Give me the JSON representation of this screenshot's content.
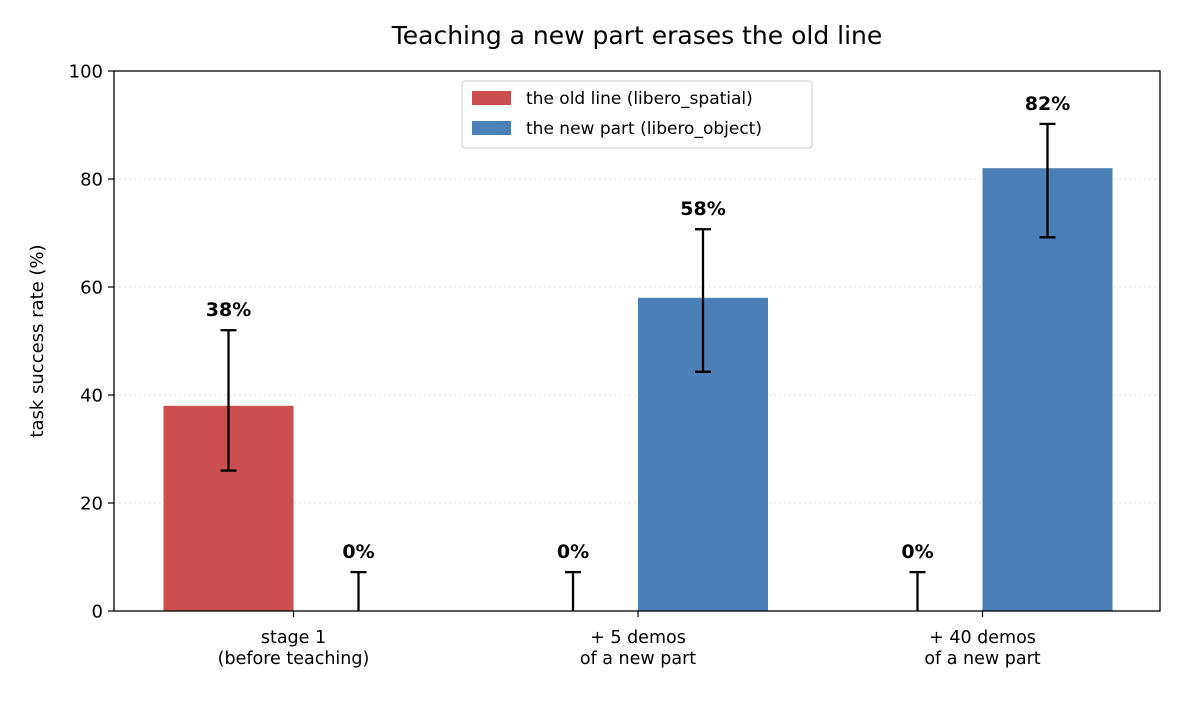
{
  "chart_data": {
    "type": "bar",
    "title": "Teaching a new part erases the old line",
    "xlabel": "",
    "ylabel": "task success rate  (%)",
    "ylim": [
      0,
      100
    ],
    "yticks": [
      "0",
      "20",
      "40",
      "60",
      "80",
      "100"
    ],
    "grid": "y, dotted",
    "legend_position": "top-center",
    "categories": [
      [
        "stage 1",
        "(before teaching)"
      ],
      [
        "+ 5 demos",
        "of a new part"
      ],
      [
        "+ 40 demos",
        "of a new part"
      ]
    ],
    "series": [
      {
        "name": "the old line (libero_spatial)",
        "color": "#c9504f",
        "values": [
          38,
          0,
          0
        ],
        "error_low": [
          26,
          0,
          0
        ],
        "error_high": [
          52,
          7.2,
          7.2
        ],
        "labels": [
          "38%",
          "0%",
          "0%"
        ]
      },
      {
        "name": "the new part (libero_object)",
        "color": "#4a7fb8",
        "values": [
          0,
          58,
          82
        ],
        "error_low": [
          0,
          44.3,
          69.2
        ],
        "error_high": [
          7.2,
          70.7,
          90.2
        ],
        "labels": [
          "0%",
          "58%",
          "82%"
        ]
      }
    ]
  }
}
